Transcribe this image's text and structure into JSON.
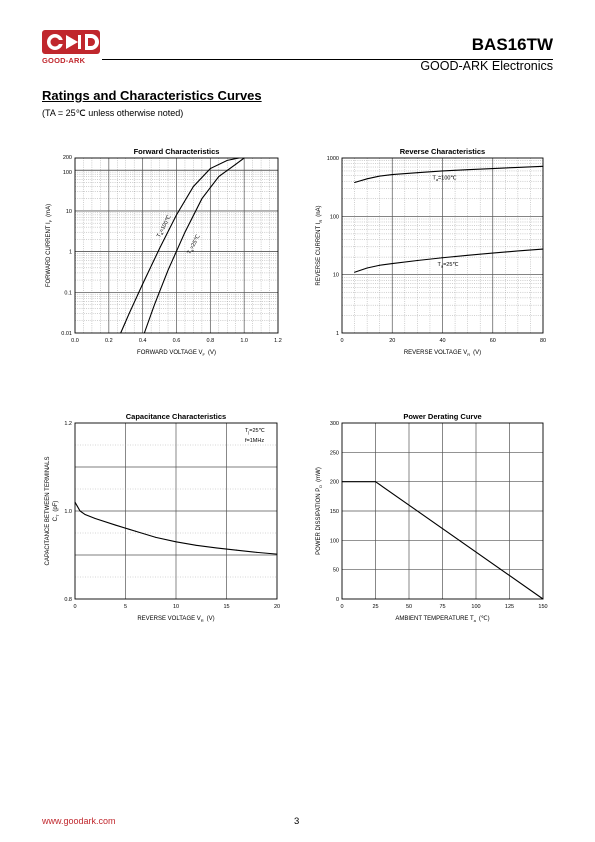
{
  "header": {
    "logo_text": "GOOD-ARK",
    "part_number": "BAS16TW",
    "company": "GOOD-ARK Electronics",
    "brand_color": "#c0272d"
  },
  "section": {
    "title": "Ratings and Characteristics Curves",
    "note": "(TA = 25℃ unless otherwise noted)"
  },
  "footer": {
    "url": "www.goodark.com",
    "page": "3"
  },
  "chart_data": [
    {
      "id": "forward",
      "type": "line",
      "title": "Forward    Characteristics",
      "xlabel": "FORWARD VOLTAGE   V",
      "xlabel_sub": "F",
      "xlabel_unit": "(V)",
      "ylabel": "FORWARD CURRENT   I",
      "ylabel_sub": "F",
      "ylabel_unit": "(mA)",
      "x_scale": "linear",
      "y_scale": "log",
      "xlim": [
        0,
        1.2
      ],
      "ylim": [
        0.01,
        200
      ],
      "grid": true,
      "x_ticks": [
        0,
        0.2,
        0.4,
        0.6,
        0.8,
        1.0,
        1.2
      ],
      "x_tick_labels": [
        "0.0",
        "0.2",
        "0.4",
        "0.6",
        "0.8",
        "1.0",
        "1.2"
      ],
      "y_ticks": [
        0.01,
        0.1,
        1,
        10,
        100,
        200
      ],
      "y_tick_labels": [
        "0.01",
        "0.1",
        "1",
        "10",
        "100",
        "200"
      ],
      "series": [
        {
          "name": "Ta=100℃",
          "label_main": "T",
          "label_sub": "a",
          "label_rest": "=100℃",
          "label_at": [
            0.5,
            2.2
          ],
          "points": [
            [
              0.27,
              0.01
            ],
            [
              0.32,
              0.03
            ],
            [
              0.4,
              0.16
            ],
            [
              0.5,
              1.2
            ],
            [
              0.6,
              8
            ],
            [
              0.7,
              40
            ],
            [
              0.8,
              110
            ],
            [
              0.9,
              175
            ],
            [
              0.97,
              200
            ]
          ]
        },
        {
          "name": "Ta=25℃",
          "label_main": "T",
          "label_sub": "a",
          "label_rest": "=25℃",
          "label_at": [
            0.68,
            0.85
          ],
          "points": [
            [
              0.41,
              0.01
            ],
            [
              0.47,
              0.05
            ],
            [
              0.55,
              0.35
            ],
            [
              0.65,
              3
            ],
            [
              0.75,
              20
            ],
            [
              0.85,
              70
            ],
            [
              0.95,
              140
            ],
            [
              1.0,
              200
            ]
          ]
        }
      ]
    },
    {
      "id": "reverse",
      "type": "line",
      "title": "Reverse    Characteristics",
      "xlabel": "REVERSE VOLTAGE   V",
      "xlabel_sub": "R",
      "xlabel_unit": "(V)",
      "ylabel": "REVERSE CURRENT   I",
      "ylabel_sub": "R",
      "ylabel_unit": "(nA)",
      "x_scale": "linear",
      "y_scale": "log",
      "xlim": [
        0,
        80
      ],
      "ylim": [
        1,
        1000
      ],
      "grid": true,
      "x_ticks": [
        0,
        20,
        40,
        60,
        80
      ],
      "x_tick_labels": [
        "0",
        "20",
        "40",
        "60",
        "80"
      ],
      "y_ticks": [
        1,
        10,
        100,
        1000
      ],
      "y_tick_labels": [
        "1",
        "10",
        "100",
        "1000"
      ],
      "series": [
        {
          "name": "Ta=100℃",
          "label_main": "T",
          "label_sub": "a",
          "label_rest": "=100℃",
          "label_at": [
            36,
            430
          ],
          "points": [
            [
              5,
              380
            ],
            [
              10,
              440
            ],
            [
              15,
              490
            ],
            [
              20,
              520
            ],
            [
              30,
              560
            ],
            [
              40,
              600
            ],
            [
              50,
              630
            ],
            [
              60,
              660
            ],
            [
              70,
              690
            ],
            [
              80,
              720
            ]
          ]
        },
        {
          "name": "Ta=25℃",
          "label_main": "T",
          "label_sub": "a",
          "label_rest": "=25℃",
          "label_at": [
            38,
            14
          ],
          "points": [
            [
              5,
              11
            ],
            [
              10,
              13
            ],
            [
              15,
              14.5
            ],
            [
              20,
              15.5
            ],
            [
              30,
              17.5
            ],
            [
              40,
              19.5
            ],
            [
              50,
              21.5
            ],
            [
              60,
              23.5
            ],
            [
              70,
              25.5
            ],
            [
              80,
              27.5
            ]
          ]
        }
      ]
    },
    {
      "id": "capacitance",
      "type": "line",
      "title": "Capacitance Characteristics",
      "xlabel": "REVERSE VOLTAGE   V",
      "xlabel_sub": "R",
      "xlabel_unit": "(V)",
      "ylabel": "CAPACITANCE BETWEEN TERMINALS",
      "ylabel2": "C",
      "ylabel2_sub": "T",
      "ylabel2_unit": "(pF)",
      "x_scale": "linear",
      "y_scale": "linear",
      "xlim": [
        0,
        20
      ],
      "ylim": [
        0.8,
        1.2
      ],
      "grid": true,
      "x_ticks": [
        0,
        5,
        10,
        15,
        20
      ],
      "x_tick_labels": [
        "0",
        "5",
        "10",
        "15",
        "20"
      ],
      "y_ticks": [
        0.8,
        1.0,
        1.2
      ],
      "y_tick_labels": [
        "0.8",
        "1.0",
        "1.2"
      ],
      "y_minor_ticks": [
        0.9,
        1.1
      ],
      "annotation": [
        "T",
        "j",
        "=25℃",
        "f=1MHz"
      ],
      "series": [
        {
          "name": "",
          "points": [
            [
              0,
              1.02
            ],
            [
              0.5,
              1.0
            ],
            [
              1,
              0.992
            ],
            [
              2,
              0.983
            ],
            [
              4,
              0.968
            ],
            [
              6,
              0.954
            ],
            [
              8,
              0.94
            ],
            [
              10,
              0.93
            ],
            [
              12,
              0.922
            ],
            [
              14,
              0.916
            ],
            [
              16,
              0.911
            ],
            [
              18,
              0.906
            ],
            [
              20,
              0.902
            ]
          ]
        }
      ]
    },
    {
      "id": "derating",
      "type": "line",
      "title": "Power Derating Curve",
      "xlabel": "AMBIENT TEMPERATURE   T",
      "xlabel_sub": "a",
      "xlabel_unit": "(℃)",
      "ylabel": "POWER DISSIPATION   P",
      "ylabel_sub": "D",
      "ylabel_unit": "(mW)",
      "x_scale": "linear",
      "y_scale": "linear",
      "xlim": [
        0,
        150
      ],
      "ylim": [
        0,
        300
      ],
      "grid": true,
      "x_ticks": [
        0,
        25,
        50,
        75,
        100,
        125,
        150
      ],
      "x_tick_labels": [
        "0",
        "25",
        "50",
        "75",
        "100",
        "125",
        "150"
      ],
      "y_ticks": [
        0,
        50,
        100,
        150,
        200,
        250,
        300
      ],
      "y_tick_labels": [
        "0",
        "50",
        "100",
        "150",
        "200",
        "250",
        "300"
      ],
      "series": [
        {
          "name": "",
          "points": [
            [
              0,
              200
            ],
            [
              25,
              200
            ],
            [
              150,
              0
            ]
          ]
        }
      ]
    }
  ]
}
